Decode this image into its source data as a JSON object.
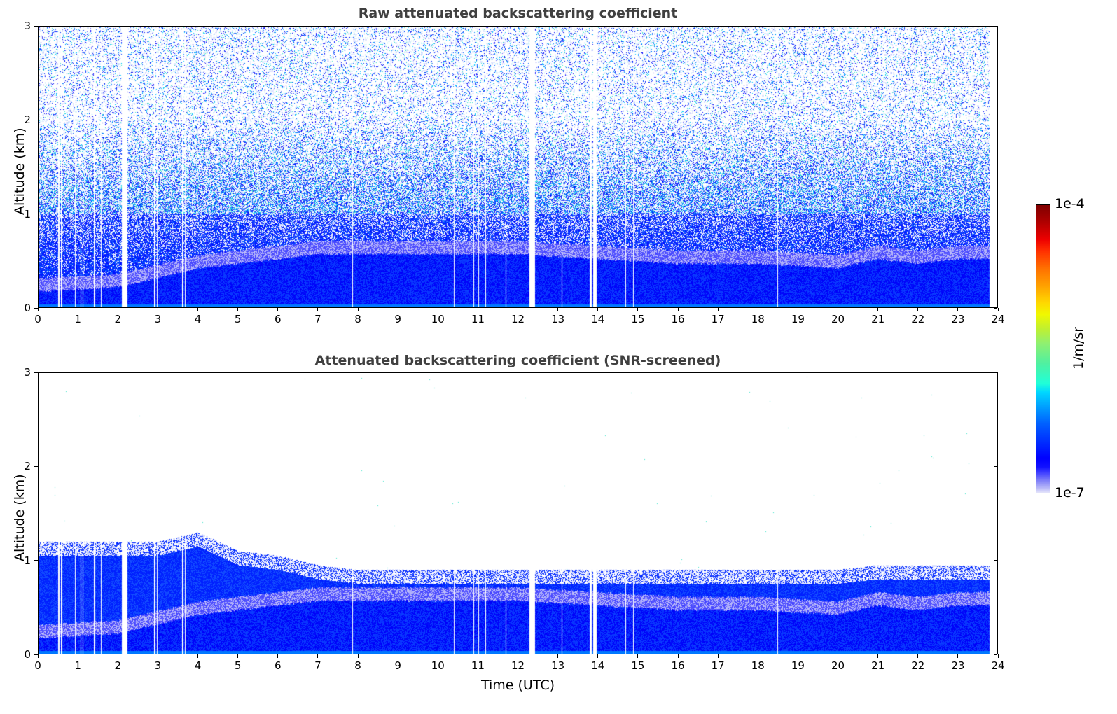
{
  "chart_data": [
    {
      "type": "heatmap",
      "title": "Raw attenuated backscattering coefficient",
      "xlabel": "",
      "ylabel": "Altitude (km)",
      "xlim": [
        0,
        24
      ],
      "ylim": [
        0,
        3
      ],
      "xticks": [
        "0",
        "1",
        "2",
        "3",
        "4",
        "5",
        "6",
        "7",
        "8",
        "9",
        "10",
        "11",
        "12",
        "13",
        "14",
        "15",
        "16",
        "17",
        "18",
        "19",
        "20",
        "21",
        "22",
        "23",
        "24"
      ],
      "yticks": [
        "0",
        "1",
        "2",
        "3"
      ],
      "screened": false
    },
    {
      "type": "heatmap",
      "title": "Attenuated backscattering coefficient (SNR-screened)",
      "xlabel": "Time (UTC)",
      "ylabel": "Altitude (km)",
      "xlim": [
        0,
        24
      ],
      "ylim": [
        0,
        3
      ],
      "xticks": [
        "0",
        "1",
        "2",
        "3",
        "4",
        "5",
        "6",
        "7",
        "8",
        "9",
        "10",
        "11",
        "12",
        "13",
        "14",
        "15",
        "16",
        "17",
        "18",
        "19",
        "20",
        "21",
        "22",
        "23",
        "24"
      ],
      "yticks": [
        "0",
        "1",
        "2",
        "3"
      ],
      "screened": true
    }
  ],
  "profile": {
    "hours": [
      0,
      2,
      3,
      4,
      5,
      6,
      7,
      8,
      10,
      12,
      14,
      16,
      18,
      20,
      21,
      22,
      23,
      24
    ],
    "aerosol_layer_top_km": [
      0.25,
      0.3,
      0.4,
      0.5,
      0.55,
      0.6,
      0.65,
      0.65,
      0.65,
      0.65,
      0.6,
      0.55,
      0.55,
      0.5,
      0.6,
      0.55,
      0.6,
      0.6
    ],
    "snr_signal_top_km": [
      1.1,
      1.1,
      1.1,
      1.2,
      1.0,
      0.95,
      0.85,
      0.8,
      0.8,
      0.8,
      0.8,
      0.8,
      0.8,
      0.8,
      0.85,
      0.85,
      0.85,
      0.85
    ],
    "data_gaps_utc": [
      [
        0.48,
        0.52
      ],
      [
        0.55,
        0.58
      ],
      [
        0.9,
        0.92
      ],
      [
        1.04,
        1.06
      ],
      [
        1.1,
        1.12
      ],
      [
        1.38,
        1.41
      ],
      [
        1.55,
        1.57
      ],
      [
        2.08,
        2.22
      ],
      [
        2.88,
        2.92
      ],
      [
        2.95,
        2.98
      ],
      [
        3.58,
        3.62
      ],
      [
        3.65,
        3.68
      ],
      [
        7.84,
        7.86
      ],
      [
        10.39,
        10.41
      ],
      [
        10.88,
        10.9
      ],
      [
        11.0,
        11.02
      ],
      [
        11.18,
        11.2
      ],
      [
        11.68,
        11.71
      ],
      [
        12.28,
        12.42
      ],
      [
        13.08,
        13.11
      ],
      [
        13.78,
        13.84
      ],
      [
        13.88,
        13.96
      ],
      [
        14.68,
        14.7
      ],
      [
        14.88,
        14.9
      ],
      [
        18.48,
        18.5
      ],
      [
        23.8,
        24
      ]
    ]
  },
  "colorbar": {
    "label": "1/m/sr",
    "max_label": "1e-4",
    "min_label": "1e-7"
  }
}
